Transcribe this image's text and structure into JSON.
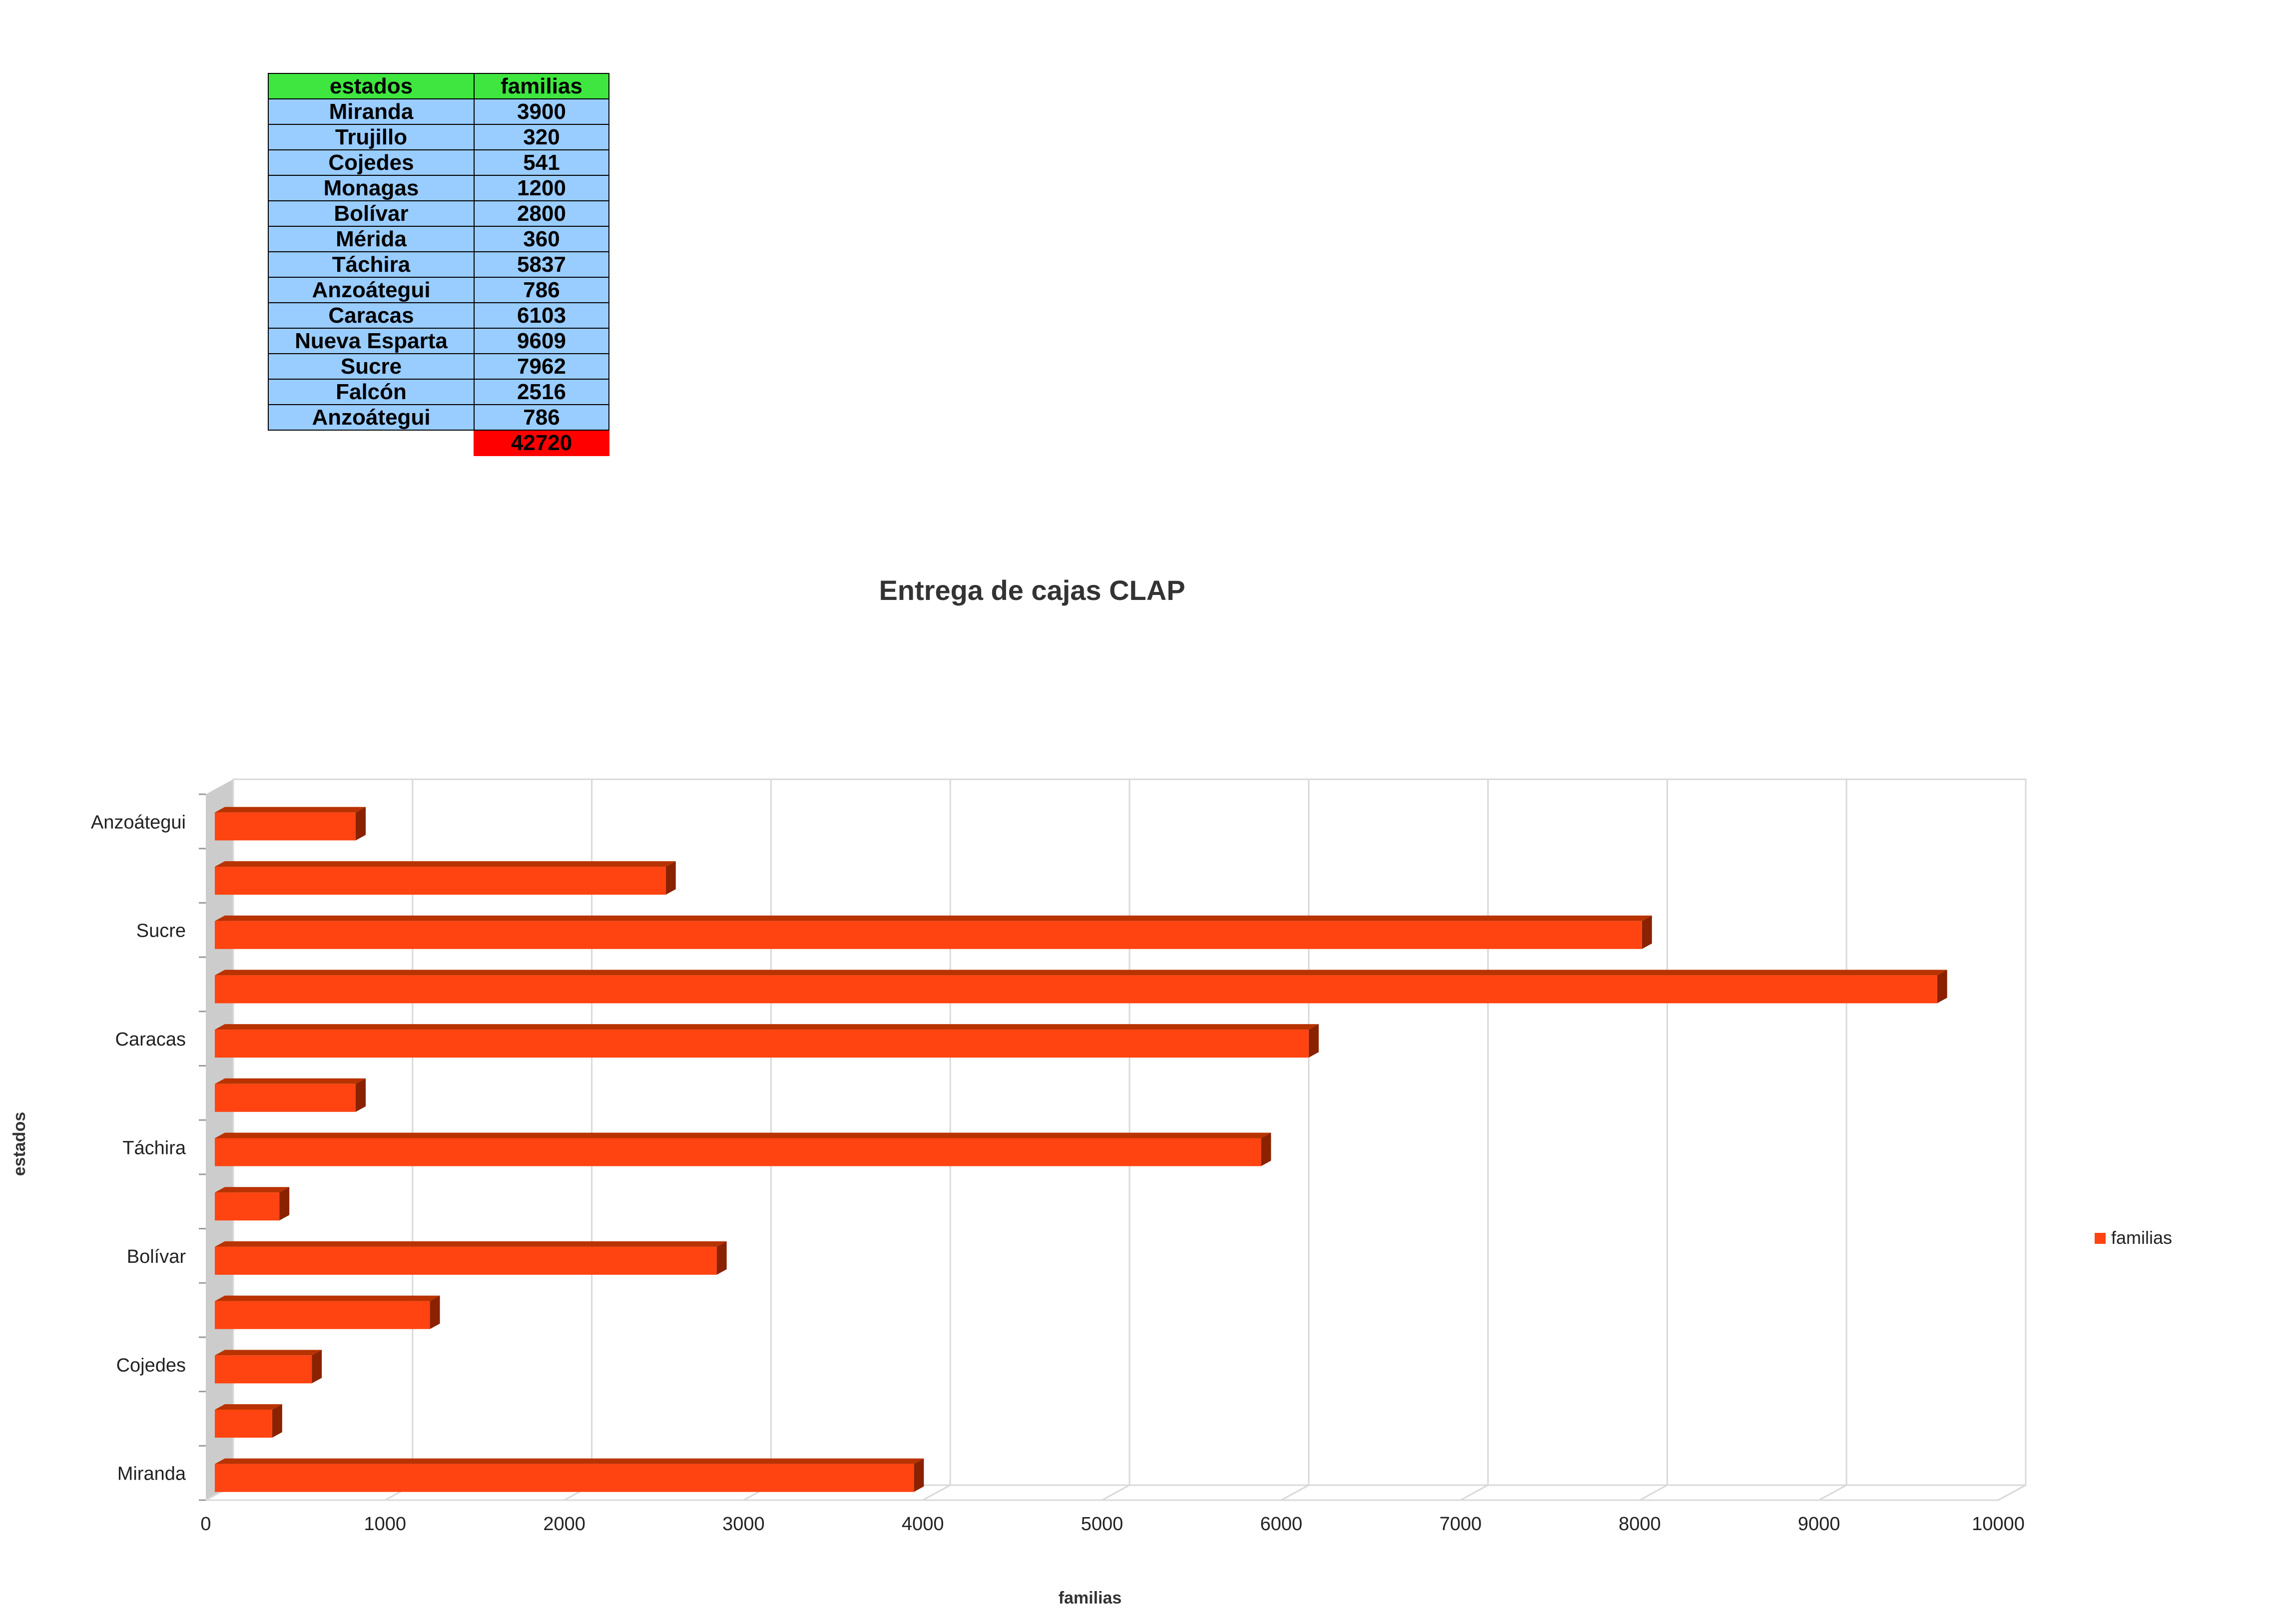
{
  "table": {
    "headers": [
      "estados",
      "familias"
    ],
    "rows": [
      [
        "Miranda",
        "3900"
      ],
      [
        "Trujillo",
        "320"
      ],
      [
        "Cojedes",
        "541"
      ],
      [
        "Monagas",
        "1200"
      ],
      [
        "Bolívar",
        "2800"
      ],
      [
        "Mérida",
        "360"
      ],
      [
        "Táchira",
        "5837"
      ],
      [
        "Anzoátegui",
        "786"
      ],
      [
        "Caracas",
        "6103"
      ],
      [
        "Nueva Esparta",
        "9609"
      ],
      [
        "Sucre",
        "7962"
      ],
      [
        "Falcón",
        "2516"
      ],
      [
        "Anzoátegui",
        "786"
      ]
    ],
    "total": "42720"
  },
  "chart_data": {
    "type": "bar",
    "orientation": "horizontal",
    "title": "Entrega de cajas CLAP",
    "xlabel": "familias",
    "ylabel": "estados",
    "categories": [
      "Miranda",
      "Trujillo",
      "Cojedes",
      "Monagas",
      "Bolívar",
      "Mérida",
      "Táchira",
      "Anzoátegui",
      "Caracas",
      "Nueva Esparta",
      "Sucre",
      "Falcón",
      "Anzoátegui"
    ],
    "category_labels_shown": [
      "Miranda",
      "",
      "Cojedes",
      "",
      "Bolívar",
      "",
      "Táchira",
      "",
      "Caracas",
      "",
      "Sucre",
      "",
      "Anzoátegui"
    ],
    "series": [
      {
        "name": "familias",
        "values": [
          3900,
          320,
          541,
          1200,
          2800,
          360,
          5837,
          786,
          6103,
          9609,
          7962,
          2516,
          786
        ]
      }
    ],
    "xlim": [
      0,
      10000
    ],
    "xticks": [
      0,
      1000,
      2000,
      3000,
      4000,
      5000,
      6000,
      7000,
      8000,
      9000,
      10000
    ],
    "grid": true,
    "style": "3d",
    "legend_position": "right",
    "colors": {
      "bar_front": "#ff4411",
      "bar_top": "#b83300",
      "bar_side": "#8a2200",
      "wall": "#cccccc",
      "grid": "#d9d9d9"
    }
  }
}
